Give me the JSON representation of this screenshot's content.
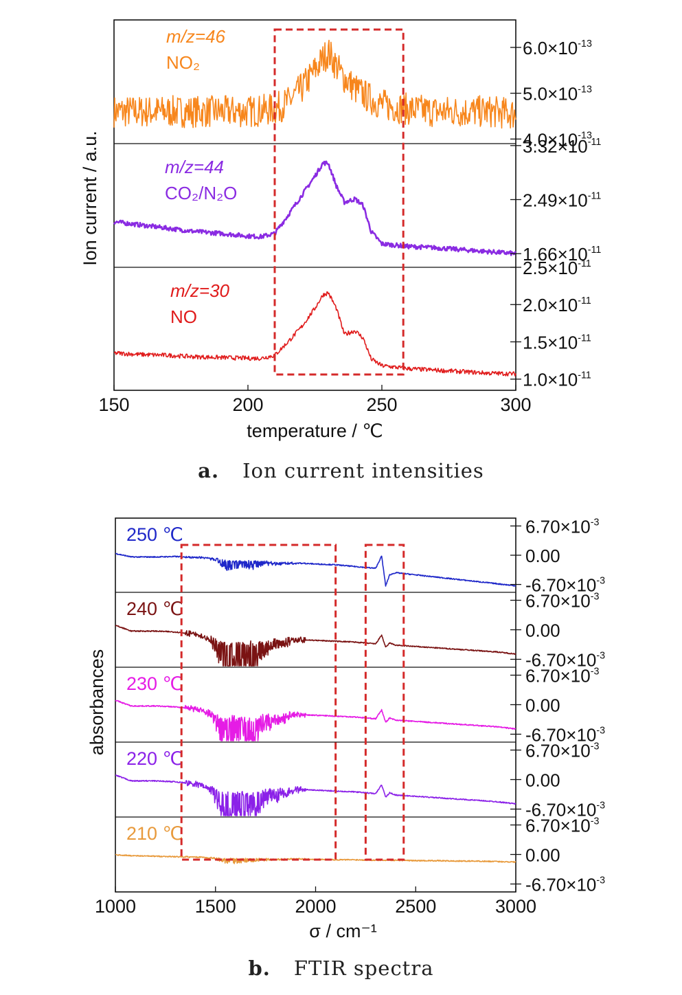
{
  "panel_a_caption": {
    "letter": "a.",
    "text": "Ion current intensities"
  },
  "panel_b_caption": {
    "letter": "b.",
    "text": "FTIR spectra"
  },
  "chart_data": [
    {
      "type": "line",
      "title": "",
      "xlabel": "temperature / ℃",
      "ylabel": "Ion current / a.u.",
      "xlim": [
        150,
        300
      ],
      "x_ticks": [
        150,
        200,
        250,
        300
      ],
      "highlight_box": {
        "x": [
          210,
          258
        ]
      },
      "box_color": "#d42a2a",
      "panels": [
        {
          "label_main": "m/z=46",
          "label_species": "NO₂",
          "color": "#f7861c",
          "ylim": [
            3.9e-13,
            6.6e-13
          ],
          "right_ticks": [
            {
              "value": 6e-13,
              "mant": "6.0",
              "exp": "-13"
            },
            {
              "value": 5e-13,
              "mant": "5.0",
              "exp": "-13"
            },
            {
              "value": 4e-13,
              "mant": "4.0",
              "exp": "-13"
            }
          ],
          "series": [
            {
              "x": [
                150,
                170,
                190,
                200,
                210,
                215,
                220,
                225,
                228,
                230,
                232,
                235,
                240,
                245,
                250,
                255,
                260,
                270,
                280,
                290,
                300
              ],
              "y": [
                4.6e-13,
                4.6e-13,
                4.6e-13,
                4.6e-13,
                4.65e-13,
                4.8e-13,
                5.1e-13,
                5.5e-13,
                5.75e-13,
                5.9e-13,
                5.7e-13,
                5.4e-13,
                5.1e-13,
                4.9e-13,
                4.75e-13,
                4.7e-13,
                4.65e-13,
                4.6e-13,
                4.6e-13,
                4.6e-13,
                4.55e-13
              ]
            }
          ]
        },
        {
          "label_main": "m/z=44",
          "label_species": "CO₂/N₂O",
          "color": "#8a2be2",
          "ylim": [
            1.45e-11,
            3.35e-11
          ],
          "right_ticks": [
            {
              "value": 3.32e-11,
              "mant": "3.32",
              "exp": "-11"
            },
            {
              "value": 2.49e-11,
              "mant": "2.49",
              "exp": "-11"
            },
            {
              "value": 1.66e-11,
              "mant": "1.66",
              "exp": "-11"
            }
          ],
          "series": [
            {
              "x": [
                150,
                160,
                170,
                180,
                190,
                200,
                205,
                210,
                215,
                220,
                225,
                228,
                230,
                233,
                236,
                240,
                243,
                246,
                250,
                255,
                260,
                270,
                280,
                290,
                300
              ],
              "y": [
                2.15e-11,
                2.1e-11,
                2.05e-11,
                2e-11,
                1.97e-11,
                1.93e-11,
                1.92e-11,
                1.97e-11,
                2.25e-11,
                2.55e-11,
                2.85e-11,
                3.05e-11,
                3.05e-11,
                2.7e-11,
                2.45e-11,
                2.5e-11,
                2.4e-11,
                2e-11,
                1.81e-11,
                1.79e-11,
                1.77e-11,
                1.75e-11,
                1.72e-11,
                1.69e-11,
                1.66e-11
              ]
            }
          ]
        },
        {
          "label_main": "m/z=30",
          "label_species": "NO",
          "color": "#e01b1b",
          "ylim": [
            8.5e-12,
            2.5e-11
          ],
          "right_ticks": [
            {
              "value": 2.5e-11,
              "mant": "2.5",
              "exp": "-11"
            },
            {
              "value": 2e-11,
              "mant": "2.0",
              "exp": "-11"
            },
            {
              "value": 1.5e-11,
              "mant": "1.5",
              "exp": "-11"
            },
            {
              "value": 1e-11,
              "mant": "1.0",
              "exp": "-11"
            }
          ],
          "series": [
            {
              "x": [
                150,
                160,
                170,
                180,
                190,
                200,
                205,
                210,
                215,
                220,
                225,
                228,
                230,
                233,
                236,
                240,
                243,
                246,
                250,
                255,
                260,
                270,
                280,
                290,
                300
              ],
              "y": [
                1.35e-11,
                1.33e-11,
                1.32e-11,
                1.3e-11,
                1.29e-11,
                1.28e-11,
                1.28e-11,
                1.32e-11,
                1.5e-11,
                1.7e-11,
                1.95e-11,
                2.13e-11,
                2.16e-11,
                1.95e-11,
                1.6e-11,
                1.65e-11,
                1.55e-11,
                1.27e-11,
                1.18e-11,
                1.16e-11,
                1.14e-11,
                1.12e-11,
                1.1e-11,
                1.08e-11,
                1.07e-11
              ]
            }
          ]
        }
      ]
    },
    {
      "type": "line",
      "title": "",
      "xlabel": "σ / cm⁻¹",
      "ylabel": "absorbances",
      "xlim": [
        1000,
        3000
      ],
      "x_ticks": [
        1000,
        1500,
        2000,
        2500,
        3000
      ],
      "highlight_boxes": [
        {
          "x": [
            1330,
            2100
          ]
        },
        {
          "x": [
            2250,
            2440
          ]
        }
      ],
      "box_color": "#d42a2a",
      "ylim": [
        -0.0085,
        0.0085
      ],
      "right_ticks": [
        {
          "value": 0.0067,
          "mant": "6.70",
          "exp": "-3"
        },
        {
          "value": 0,
          "mant": "0.00",
          "exp": ""
        },
        {
          "value": -0.0067,
          "mant": "-6.70",
          "exp": "-3"
        }
      ],
      "panels": [
        {
          "label": "250 ℃",
          "color": "#1f28c9",
          "amp": 0.25,
          "x": [
            1000,
            1080,
            1100,
            1200,
            1300,
            1400,
            1500,
            1600,
            1700,
            1800,
            1900,
            2000,
            2100,
            2200,
            2300,
            2330,
            2350,
            2370,
            2400,
            2500,
            2600,
            2700,
            2800,
            2900,
            3000
          ],
          "y": [
            0.0004,
            -0.0004,
            -0.0004,
            -0.0004,
            -0.0003,
            -0.0005,
            -0.0006,
            -0.0012,
            -0.0012,
            -0.0016,
            -0.0018,
            -0.002,
            -0.0022,
            -0.0026,
            -0.003,
            -0.0002,
            -0.007,
            -0.0045,
            -0.004,
            -0.0045,
            -0.005,
            -0.0055,
            -0.006,
            -0.0065,
            -0.007
          ]
        },
        {
          "label": "240 ℃",
          "color": "#7a1313",
          "amp": 1.0,
          "x": [
            1000,
            1080,
            1100,
            1200,
            1300,
            1400,
            1500,
            1600,
            1700,
            1800,
            1900,
            2000,
            2100,
            2200,
            2300,
            2330,
            2350,
            2370,
            2400,
            2500,
            2600,
            2700,
            2800,
            2900,
            3000
          ],
          "y": [
            0.001,
            -0.0003,
            -0.0003,
            -0.0003,
            -0.0005,
            -0.001,
            -0.002,
            -0.002,
            -0.0025,
            -0.0022,
            -0.0022,
            -0.0024,
            -0.0026,
            -0.0028,
            -0.0032,
            -0.0012,
            -0.004,
            -0.003,
            -0.0035,
            -0.0038,
            -0.0041,
            -0.0044,
            -0.0047,
            -0.005,
            -0.0055
          ]
        },
        {
          "label": "230 ℃",
          "color": "#e51ce5",
          "amp": 1.0,
          "x": [
            1000,
            1080,
            1100,
            1200,
            1300,
            1400,
            1500,
            1600,
            1700,
            1800,
            1900,
            2000,
            2100,
            2200,
            2300,
            2330,
            2350,
            2370,
            2400,
            2500,
            2600,
            2700,
            2800,
            2900,
            3000
          ],
          "y": [
            0.001,
            -0.0003,
            -0.0003,
            -0.0003,
            -0.0005,
            -0.001,
            -0.002,
            -0.002,
            -0.0025,
            -0.0022,
            -0.0022,
            -0.0024,
            -0.0026,
            -0.0028,
            -0.0032,
            -0.0012,
            -0.004,
            -0.003,
            -0.0035,
            -0.0038,
            -0.0041,
            -0.0044,
            -0.0047,
            -0.005,
            -0.0055
          ]
        },
        {
          "label": "220 ℃",
          "color": "#8b21e8",
          "amp": 1.0,
          "x": [
            1000,
            1080,
            1100,
            1200,
            1300,
            1400,
            1500,
            1600,
            1700,
            1800,
            1900,
            2000,
            2100,
            2200,
            2300,
            2330,
            2350,
            2370,
            2400,
            2500,
            2600,
            2700,
            2800,
            2900,
            3000
          ],
          "y": [
            0.001,
            -0.0003,
            -0.0003,
            -0.0003,
            -0.0005,
            -0.001,
            -0.002,
            -0.002,
            -0.0025,
            -0.0022,
            -0.0022,
            -0.0024,
            -0.0026,
            -0.0028,
            -0.0032,
            -0.0012,
            -0.004,
            -0.003,
            -0.0035,
            -0.0038,
            -0.0041,
            -0.0044,
            -0.0047,
            -0.005,
            -0.0055
          ]
        },
        {
          "label": "210 ℃",
          "color": "#e89a3c",
          "amp": 0.12,
          "x": [
            1000,
            1100,
            1200,
            1300,
            1400,
            1500,
            1600,
            1700,
            1800,
            1900,
            2000,
            2100,
            2200,
            2300,
            2400,
            2500,
            2600,
            2700,
            2800,
            2900,
            3000
          ],
          "y": [
            -0.0001,
            -0.0003,
            -0.0004,
            -0.0005,
            -0.0006,
            -0.0008,
            -0.0009,
            -0.0009,
            -0.001,
            -0.001,
            -0.0011,
            -0.0012,
            -0.0012,
            -0.0013,
            -0.0013,
            -0.0014,
            -0.0014,
            -0.0015,
            -0.0015,
            -0.0016,
            -0.0017
          ]
        }
      ]
    }
  ]
}
